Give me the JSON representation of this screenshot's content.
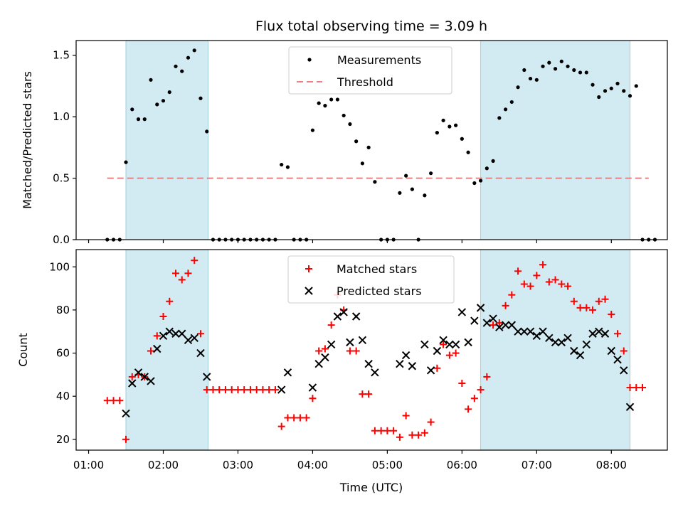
{
  "chart_data": [
    {
      "type": "scatter",
      "title": "Flux total observing time = 3.09 h",
      "ylabel": "Matched/Predicted stars",
      "xlabel": "",
      "ylim": [
        0,
        1.62
      ],
      "yticks": [
        "0.0",
        "0.5",
        "1.0",
        "1.5"
      ],
      "ytick_values": [
        0,
        0.5,
        1.0,
        1.5
      ],
      "shaded_ranges": [
        [
          "01:30",
          "02:36"
        ],
        [
          "06:15",
          "08:15"
        ]
      ],
      "shade_color": "#add8e6",
      "series": [
        {
          "name": "Measurements",
          "marker": "dot",
          "color": "#000000",
          "points": [
            [
              "01:15",
              0
            ],
            [
              "01:20",
              0
            ],
            [
              "01:25",
              0
            ],
            [
              "01:30",
              0.63
            ],
            [
              "01:35",
              1.06
            ],
            [
              "01:40",
              0.98
            ],
            [
              "01:45",
              0.98
            ],
            [
              "01:50",
              1.3
            ],
            [
              "01:55",
              1.1
            ],
            [
              "02:00",
              1.13
            ],
            [
              "02:05",
              1.2
            ],
            [
              "02:10",
              1.41
            ],
            [
              "02:15",
              1.37
            ],
            [
              "02:20",
              1.48
            ],
            [
              "02:25",
              1.54
            ],
            [
              "02:30",
              1.15
            ],
            [
              "02:35",
              0.88
            ],
            [
              "02:40",
              0
            ],
            [
              "02:45",
              0
            ],
            [
              "02:50",
              0
            ],
            [
              "02:55",
              0
            ],
            [
              "03:00",
              0
            ],
            [
              "03:05",
              0
            ],
            [
              "03:10",
              0
            ],
            [
              "03:15",
              0
            ],
            [
              "03:20",
              0
            ],
            [
              "03:25",
              0
            ],
            [
              "03:30",
              0
            ],
            [
              "03:35",
              0.61
            ],
            [
              "03:40",
              0.59
            ],
            [
              "03:45",
              0
            ],
            [
              "03:50",
              0
            ],
            [
              "03:55",
              0
            ],
            [
              "04:00",
              0.89
            ],
            [
              "04:05",
              1.11
            ],
            [
              "04:10",
              1.09
            ],
            [
              "04:15",
              1.14
            ],
            [
              "04:20",
              1.14
            ],
            [
              "04:25",
              1.01
            ],
            [
              "04:30",
              0.94
            ],
            [
              "04:35",
              0.8
            ],
            [
              "04:40",
              0.62
            ],
            [
              "04:45",
              0.75
            ],
            [
              "04:50",
              0.47
            ],
            [
              "04:55",
              0
            ],
            [
              "05:00",
              0
            ],
            [
              "05:05",
              0
            ],
            [
              "05:10",
              0.38
            ],
            [
              "05:15",
              0.52
            ],
            [
              "05:20",
              0.41
            ],
            [
              "05:25",
              0
            ],
            [
              "05:30",
              0.36
            ],
            [
              "05:35",
              0.54
            ],
            [
              "05:40",
              0.87
            ],
            [
              "05:45",
              0.97
            ],
            [
              "05:50",
              0.92
            ],
            [
              "05:55",
              0.93
            ],
            [
              "06:00",
              0.82
            ],
            [
              "06:05",
              0.71
            ],
            [
              "06:10",
              0.46
            ],
            [
              "06:15",
              0.48
            ],
            [
              "06:20",
              0.58
            ],
            [
              "06:25",
              0.64
            ],
            [
              "06:30",
              0.99
            ],
            [
              "06:35",
              1.06
            ],
            [
              "06:40",
              1.12
            ],
            [
              "06:45",
              1.24
            ],
            [
              "06:50",
              1.38
            ],
            [
              "06:55",
              1.31
            ],
            [
              "07:00",
              1.3
            ],
            [
              "07:05",
              1.41
            ],
            [
              "07:10",
              1.44
            ],
            [
              "07:15",
              1.39
            ],
            [
              "07:20",
              1.45
            ],
            [
              "07:25",
              1.41
            ],
            [
              "07:30",
              1.38
            ],
            [
              "07:35",
              1.36
            ],
            [
              "07:40",
              1.36
            ],
            [
              "07:45",
              1.26
            ],
            [
              "07:50",
              1.16
            ],
            [
              "07:55",
              1.21
            ],
            [
              "08:00",
              1.23
            ],
            [
              "08:05",
              1.27
            ],
            [
              "08:10",
              1.21
            ],
            [
              "08:15",
              1.17
            ],
            [
              "08:20",
              1.25
            ],
            [
              "08:25",
              0
            ],
            [
              "08:30",
              0
            ],
            [
              "08:35",
              0
            ]
          ]
        },
        {
          "name": "Threshold",
          "marker": "dashed-line",
          "color": "#f08080",
          "points": [
            [
              "01:15",
              0.5
            ],
            [
              "08:30",
              0.5
            ]
          ]
        }
      ],
      "legend": {
        "placement": "upper-center",
        "entries": [
          "Measurements",
          "Threshold"
        ]
      }
    },
    {
      "type": "scatter",
      "xlabel": "Time (UTC)",
      "ylabel": "Count",
      "ylim": [
        15,
        108
      ],
      "yticks": [
        "20",
        "40",
        "60",
        "80",
        "100"
      ],
      "ytick_values": [
        20,
        40,
        60,
        80,
        100
      ],
      "xticks": [
        "01:00",
        "02:00",
        "03:00",
        "04:00",
        "05:00",
        "06:00",
        "07:00",
        "08:00"
      ],
      "shaded_ranges": [
        [
          "01:30",
          "02:36"
        ],
        [
          "06:15",
          "08:15"
        ]
      ],
      "shade_color": "#add8e6",
      "series": [
        {
          "name": "Matched stars",
          "marker": "plus",
          "color": "#ff0000",
          "points": [
            [
              "01:15",
              38
            ],
            [
              "01:20",
              38
            ],
            [
              "01:25",
              38
            ],
            [
              "01:30",
              20
            ],
            [
              "01:35",
              49
            ],
            [
              "01:40",
              50
            ],
            [
              "01:45",
              49
            ],
            [
              "01:50",
              61
            ],
            [
              "01:55",
              68
            ],
            [
              "02:00",
              77
            ],
            [
              "02:05",
              84
            ],
            [
              "02:10",
              97
            ],
            [
              "02:15",
              94
            ],
            [
              "02:20",
              97
            ],
            [
              "02:25",
              103
            ],
            [
              "02:30",
              69
            ],
            [
              "02:35",
              43
            ],
            [
              "02:40",
              43
            ],
            [
              "02:45",
              43
            ],
            [
              "02:50",
              43
            ],
            [
              "02:55",
              43
            ],
            [
              "03:00",
              43
            ],
            [
              "03:05",
              43
            ],
            [
              "03:10",
              43
            ],
            [
              "03:15",
              43
            ],
            [
              "03:20",
              43
            ],
            [
              "03:25",
              43
            ],
            [
              "03:30",
              43
            ],
            [
              "03:35",
              26
            ],
            [
              "03:40",
              30
            ],
            [
              "03:45",
              30
            ],
            [
              "03:50",
              30
            ],
            [
              "03:55",
              30
            ],
            [
              "04:00",
              39
            ],
            [
              "04:05",
              61
            ],
            [
              "04:10",
              62
            ],
            [
              "04:15",
              73
            ],
            [
              "04:20",
              87
            ],
            [
              "04:25",
              80
            ],
            [
              "04:30",
              61
            ],
            [
              "04:35",
              61
            ],
            [
              "04:40",
              41
            ],
            [
              "04:45",
              41
            ],
            [
              "04:50",
              24
            ],
            [
              "04:55",
              24
            ],
            [
              "05:00",
              24
            ],
            [
              "05:05",
              24
            ],
            [
              "05:10",
              21
            ],
            [
              "05:15",
              31
            ],
            [
              "05:20",
              22
            ],
            [
              "05:25",
              22
            ],
            [
              "05:30",
              23
            ],
            [
              "05:35",
              28
            ],
            [
              "05:40",
              53
            ],
            [
              "05:45",
              64
            ],
            [
              "05:50",
              59
            ],
            [
              "05:55",
              60
            ],
            [
              "06:00",
              46
            ],
            [
              "06:05",
              34
            ],
            [
              "06:10",
              39
            ],
            [
              "06:15",
              43
            ],
            [
              "06:20",
              49
            ],
            [
              "06:25",
              73
            ],
            [
              "06:30",
              74
            ],
            [
              "06:35",
              82
            ],
            [
              "06:40",
              87
            ],
            [
              "06:45",
              98
            ],
            [
              "06:50",
              92
            ],
            [
              "06:55",
              91
            ],
            [
              "07:00",
              96
            ],
            [
              "07:05",
              101
            ],
            [
              "07:10",
              93
            ],
            [
              "07:15",
              94
            ],
            [
              "07:20",
              92
            ],
            [
              "07:25",
              91
            ],
            [
              "07:30",
              84
            ],
            [
              "07:35",
              81
            ],
            [
              "07:40",
              81
            ],
            [
              "07:45",
              80
            ],
            [
              "07:50",
              84
            ],
            [
              "07:55",
              85
            ],
            [
              "08:00",
              78
            ],
            [
              "08:05",
              69
            ],
            [
              "08:10",
              61
            ],
            [
              "08:15",
              44
            ],
            [
              "08:20",
              44
            ],
            [
              "08:25",
              44
            ]
          ]
        },
        {
          "name": "Predicted stars",
          "marker": "x",
          "color": "#000000",
          "points": [
            [
              "01:30",
              32
            ],
            [
              "01:35",
              46
            ],
            [
              "01:40",
              51
            ],
            [
              "01:45",
              49
            ],
            [
              "01:50",
              47
            ],
            [
              "01:55",
              62
            ],
            [
              "02:00",
              68
            ],
            [
              "02:05",
              70
            ],
            [
              "02:10",
              69
            ],
            [
              "02:15",
              69
            ],
            [
              "02:20",
              66
            ],
            [
              "02:25",
              67
            ],
            [
              "02:30",
              60
            ],
            [
              "02:35",
              49
            ],
            [
              "03:35",
              43
            ],
            [
              "03:40",
              51
            ],
            [
              "04:00",
              44
            ],
            [
              "04:05",
              55
            ],
            [
              "04:10",
              58
            ],
            [
              "04:15",
              64
            ],
            [
              "04:20",
              77
            ],
            [
              "04:25",
              79
            ],
            [
              "04:30",
              65
            ],
            [
              "04:35",
              77
            ],
            [
              "04:40",
              66
            ],
            [
              "04:45",
              55
            ],
            [
              "04:50",
              51
            ],
            [
              "05:10",
              55
            ],
            [
              "05:15",
              59
            ],
            [
              "05:20",
              54
            ],
            [
              "05:30",
              64
            ],
            [
              "05:35",
              52
            ],
            [
              "05:40",
              61
            ],
            [
              "05:45",
              66
            ],
            [
              "05:50",
              64
            ],
            [
              "05:55",
              64
            ],
            [
              "06:00",
              79
            ],
            [
              "06:05",
              65
            ],
            [
              "06:10",
              75
            ],
            [
              "06:15",
              81
            ],
            [
              "06:20",
              74
            ],
            [
              "06:25",
              76
            ],
            [
              "06:30",
              72
            ],
            [
              "06:35",
              73
            ],
            [
              "06:40",
              73
            ],
            [
              "06:45",
              70
            ],
            [
              "06:50",
              70
            ],
            [
              "06:55",
              70
            ],
            [
              "07:00",
              68
            ],
            [
              "07:05",
              70
            ],
            [
              "07:10",
              67
            ],
            [
              "07:15",
              65
            ],
            [
              "07:20",
              65
            ],
            [
              "07:25",
              67
            ],
            [
              "07:30",
              61
            ],
            [
              "07:35",
              59
            ],
            [
              "07:40",
              64
            ],
            [
              "07:45",
              69
            ],
            [
              "07:50",
              70
            ],
            [
              "07:55",
              69
            ],
            [
              "08:00",
              61
            ],
            [
              "08:05",
              57
            ],
            [
              "08:10",
              52
            ],
            [
              "08:15",
              35
            ]
          ]
        }
      ],
      "legend": {
        "placement": "upper-center",
        "entries": [
          "Matched stars",
          "Predicted stars"
        ]
      }
    }
  ]
}
